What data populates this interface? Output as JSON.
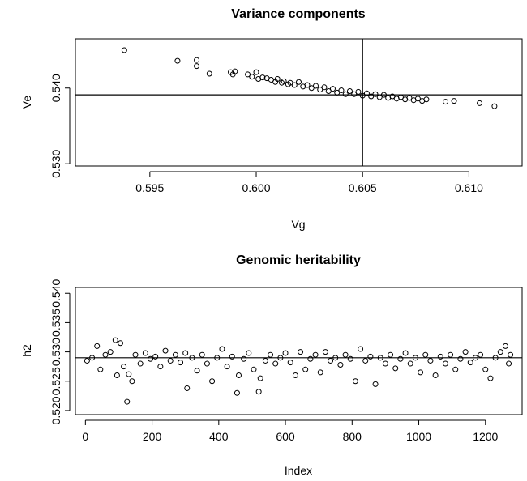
{
  "chart_data": [
    {
      "type": "scatter",
      "title": "Variance components",
      "xlabel": "Vg",
      "ylabel": "Ve",
      "xlim": [
        0.5915,
        0.6125
      ],
      "ylim": [
        0.5297,
        0.5465
      ],
      "x_ticks": [
        "0.595",
        "0.600",
        "0.605",
        "0.610"
      ],
      "y_ticks": [
        "0.530",
        "0.540"
      ],
      "ref_lines": {
        "vertical": 0.605,
        "horizontal": 0.5391
      },
      "grid": false,
      "x": [
        0.5938,
        0.5963,
        0.5972,
        0.5972,
        0.5978,
        0.5988,
        0.5989,
        0.599,
        0.5996,
        0.5998,
        0.6,
        0.6001,
        0.6003,
        0.6005,
        0.6007,
        0.6009,
        0.601,
        0.6012,
        0.6013,
        0.6015,
        0.6016,
        0.6018,
        0.602,
        0.6022,
        0.6024,
        0.6026,
        0.6028,
        0.603,
        0.6032,
        0.6034,
        0.6036,
        0.6038,
        0.604,
        0.6042,
        0.6044,
        0.6046,
        0.6048,
        0.605,
        0.6052,
        0.6054,
        0.6056,
        0.6058,
        0.606,
        0.6062,
        0.6064,
        0.6066,
        0.6068,
        0.607,
        0.6072,
        0.6074,
        0.6076,
        0.6078,
        0.608,
        0.6089,
        0.6093,
        0.6105,
        0.6112
      ],
      "y": [
        0.545,
        0.5436,
        0.5437,
        0.5429,
        0.5419,
        0.5421,
        0.5418,
        0.5422,
        0.5418,
        0.5415,
        0.5421,
        0.5412,
        0.5414,
        0.5413,
        0.5411,
        0.5408,
        0.5412,
        0.5407,
        0.5409,
        0.5405,
        0.5407,
        0.5404,
        0.5408,
        0.5402,
        0.5404,
        0.54,
        0.5403,
        0.5398,
        0.5401,
        0.5396,
        0.5399,
        0.5394,
        0.5397,
        0.5392,
        0.5396,
        0.5392,
        0.5395,
        0.539,
        0.5393,
        0.5389,
        0.5392,
        0.5388,
        0.5391,
        0.5387,
        0.5389,
        0.5386,
        0.5388,
        0.5385,
        0.5387,
        0.5384,
        0.5386,
        0.5383,
        0.5385,
        0.5382,
        0.5383,
        0.538,
        0.5376
      ]
    },
    {
      "type": "scatter",
      "title": "Genomic heritability",
      "xlabel": "Index",
      "ylabel": "h2",
      "xlim": [
        -30,
        1310
      ],
      "ylim": [
        0.5193,
        0.541
      ],
      "x_ticks": [
        "0",
        "200",
        "400",
        "600",
        "800",
        "1000",
        "1200"
      ],
      "y_ticks": [
        "0.520",
        "0.525",
        "0.530",
        "0.535",
        "0.540"
      ],
      "ref_lines": {
        "horizontal": 0.529
      },
      "grid": false,
      "x": [
        5,
        20,
        35,
        45,
        60,
        75,
        90,
        95,
        105,
        115,
        125,
        130,
        140,
        150,
        165,
        180,
        195,
        210,
        225,
        240,
        255,
        270,
        285,
        300,
        305,
        320,
        335,
        350,
        365,
        380,
        395,
        410,
        425,
        440,
        455,
        460,
        475,
        490,
        505,
        520,
        525,
        540,
        555,
        570,
        585,
        600,
        615,
        630,
        645,
        660,
        675,
        690,
        705,
        720,
        735,
        750,
        765,
        780,
        795,
        810,
        825,
        840,
        855,
        870,
        885,
        900,
        915,
        930,
        945,
        960,
        975,
        990,
        1005,
        1020,
        1035,
        1050,
        1065,
        1080,
        1095,
        1110,
        1125,
        1140,
        1155,
        1170,
        1185,
        1200,
        1215,
        1230,
        1245,
        1260,
        1270,
        1275
      ],
      "y": [
        0.5285,
        0.529,
        0.531,
        0.527,
        0.5295,
        0.53,
        0.532,
        0.526,
        0.5315,
        0.5275,
        0.5215,
        0.5262,
        0.525,
        0.5295,
        0.528,
        0.5298,
        0.5288,
        0.5292,
        0.5275,
        0.5302,
        0.5285,
        0.5295,
        0.5282,
        0.5298,
        0.5238,
        0.529,
        0.5268,
        0.5295,
        0.528,
        0.525,
        0.529,
        0.5305,
        0.5275,
        0.5292,
        0.523,
        0.526,
        0.5288,
        0.5298,
        0.527,
        0.5232,
        0.5255,
        0.5285,
        0.5295,
        0.528,
        0.529,
        0.5298,
        0.5282,
        0.526,
        0.53,
        0.527,
        0.5288,
        0.5295,
        0.5265,
        0.53,
        0.5285,
        0.529,
        0.5278,
        0.5295,
        0.5288,
        0.525,
        0.5305,
        0.5285,
        0.5292,
        0.5245,
        0.529,
        0.528,
        0.5295,
        0.5272,
        0.5288,
        0.5298,
        0.528,
        0.529,
        0.5265,
        0.5295,
        0.5285,
        0.526,
        0.5292,
        0.528,
        0.5295,
        0.527,
        0.5288,
        0.53,
        0.5282,
        0.529,
        0.5295,
        0.527,
        0.5255,
        0.529,
        0.53,
        0.531,
        0.528,
        0.5295
      ]
    }
  ]
}
